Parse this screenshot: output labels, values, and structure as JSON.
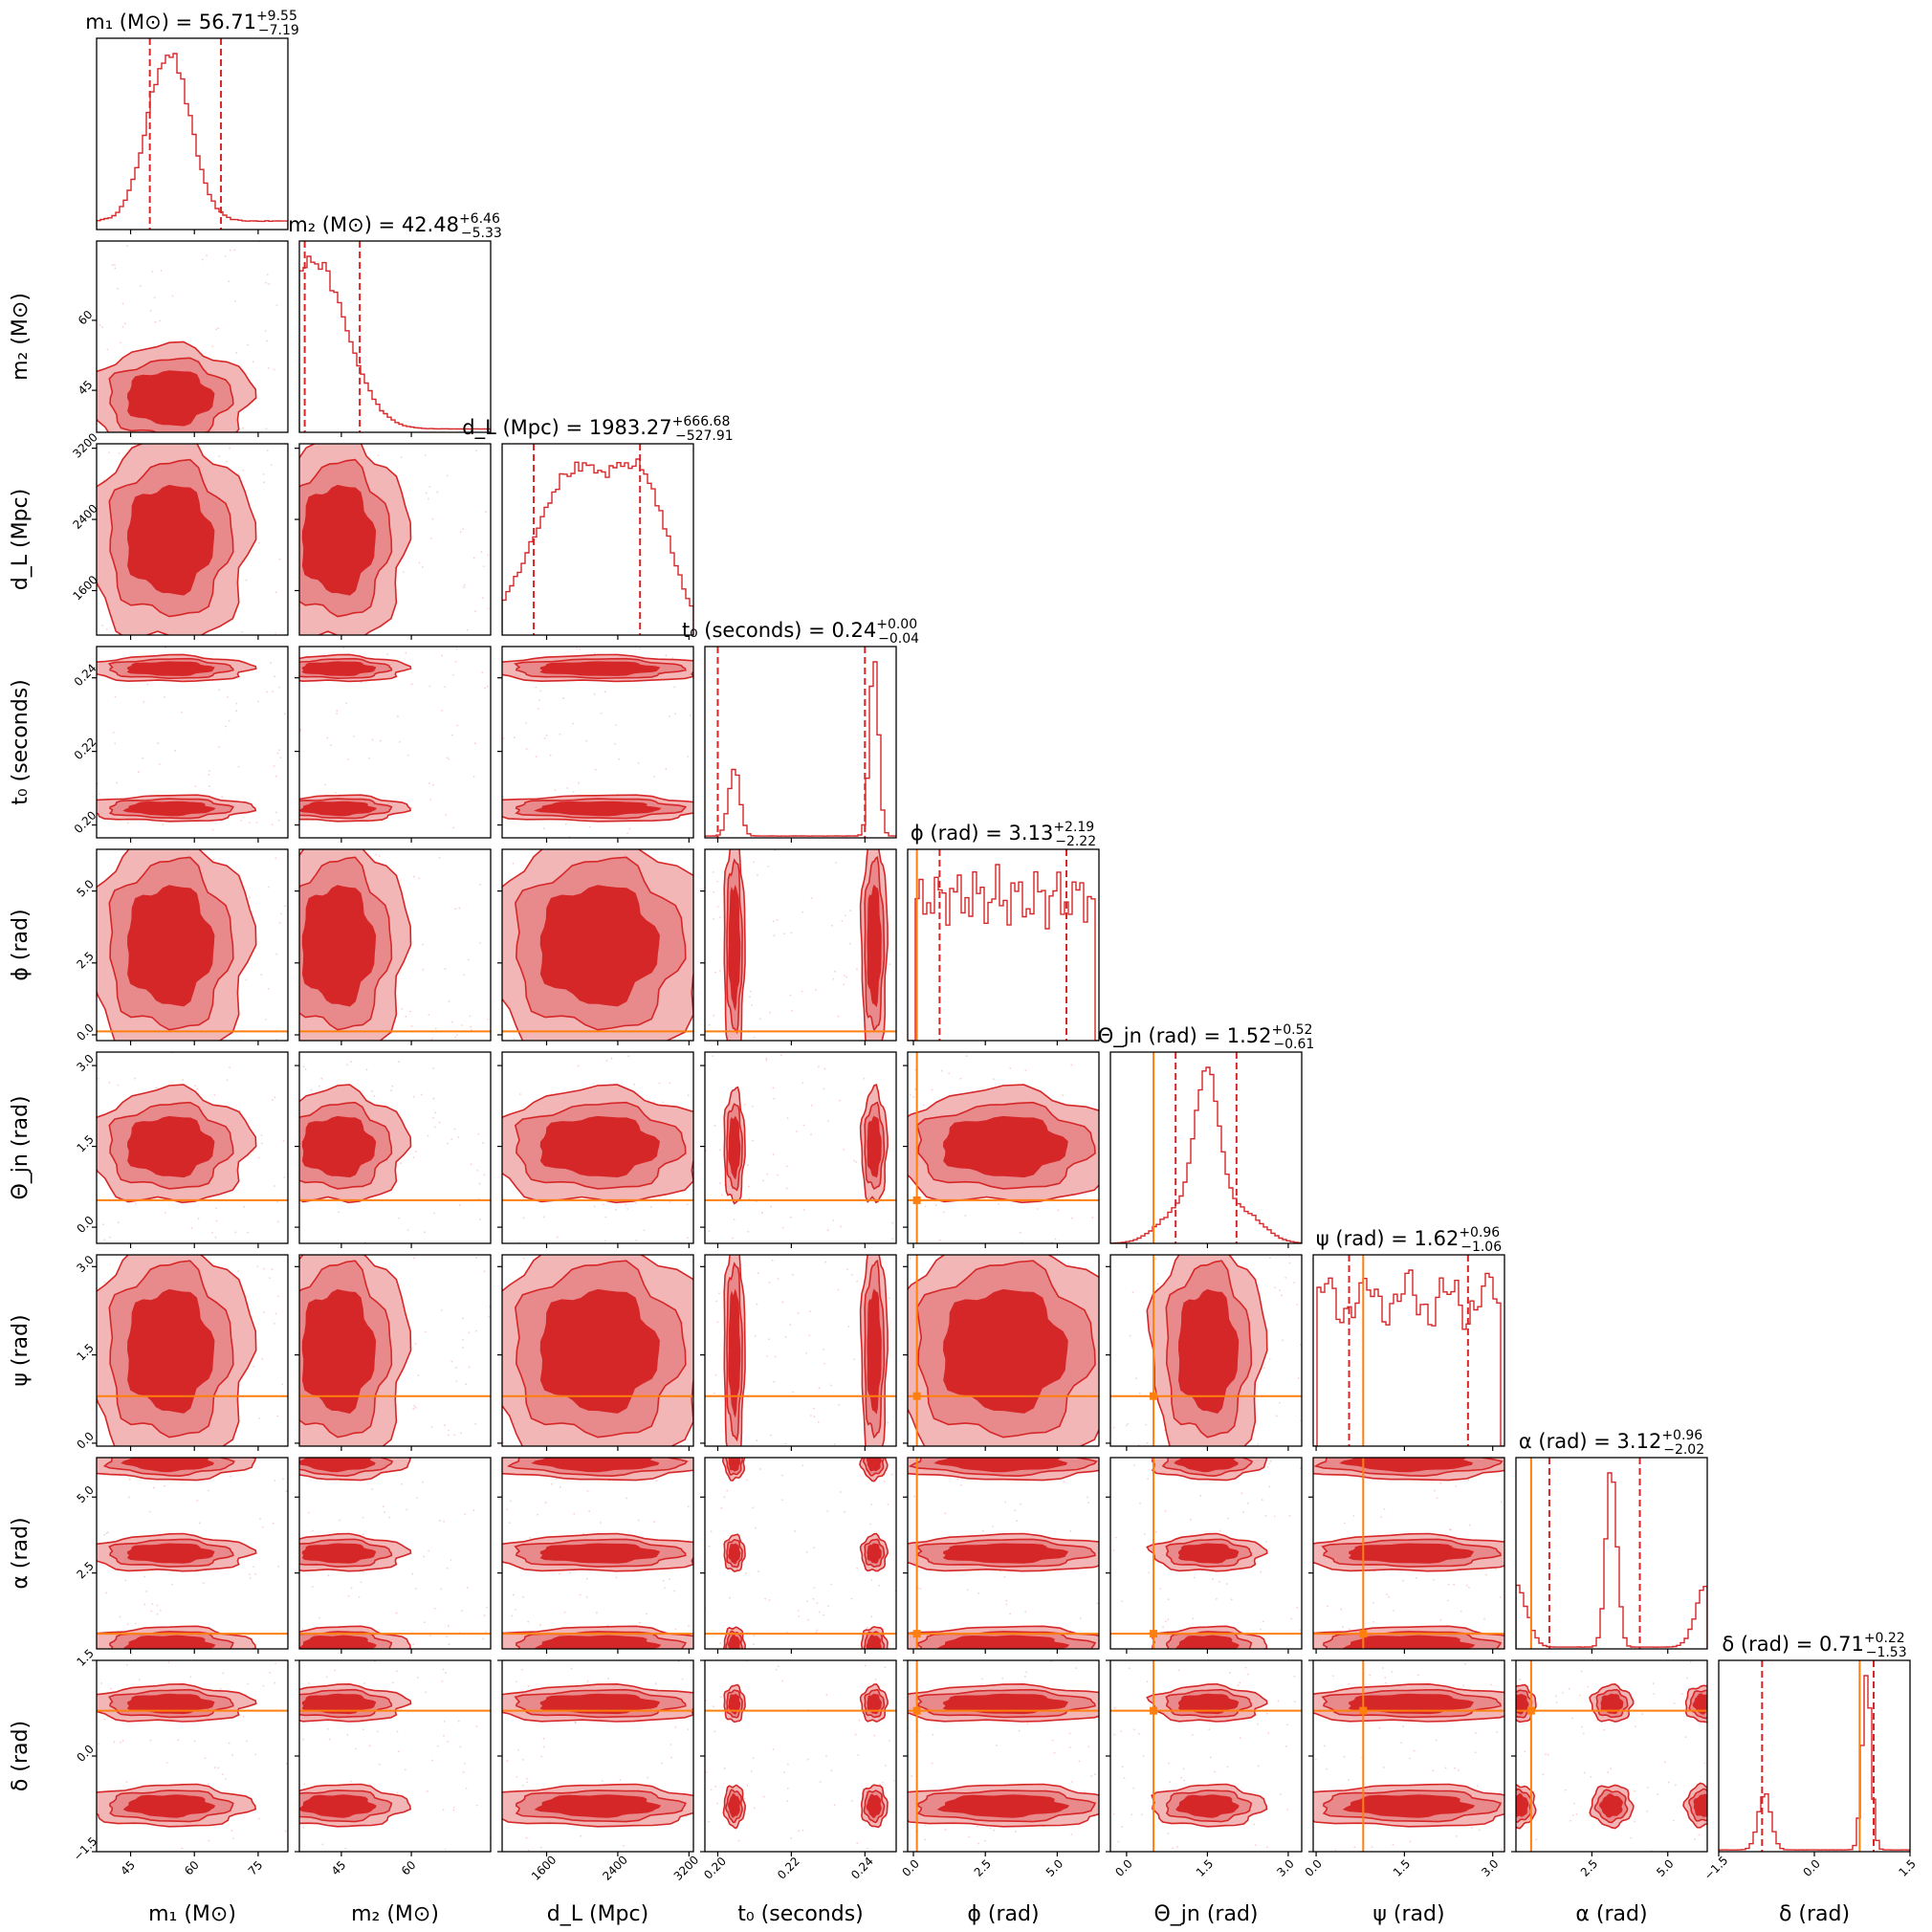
{
  "chart_data": {
    "type": "corner",
    "description": "Corner plot of posterior samples: 1D marginal histograms on the diagonal, 2D density contours below the diagonal.",
    "colors": {
      "posterior": "#d62728",
      "contour_outer": "#f3b6b6",
      "contour_mid": "#e88a8b",
      "contour_inner": "#d62728",
      "injection": "#ff7f0e"
    },
    "parameters": [
      {
        "key": "m1",
        "symbol": "m",
        "sub": "1",
        "unit": "M⊙",
        "label": "m₁ (M⊙)",
        "title_main": "m₁ (M⊙) = 56.71",
        "title_plus": "+9.55",
        "title_minus": "−7.19",
        "median": 56.71,
        "plus": 9.55,
        "minus": 7.19,
        "range": [
          37,
          82
        ],
        "ticks": [
          45,
          60,
          75
        ],
        "tick_labels": [
          "45",
          "60",
          "75"
        ],
        "hist_peaks": [
          [
            54,
            1.0,
            5
          ]
        ],
        "hist_base": 0.05
      },
      {
        "key": "m2",
        "symbol": "m",
        "sub": "2",
        "unit": "M⊙",
        "label": "m₂ (M⊙)",
        "title_main": "m₂ (M⊙) = 42.48",
        "title_plus": "+6.46",
        "title_minus": "−5.33",
        "median": 42.48,
        "plus": 6.46,
        "minus": 5.33,
        "range": [
          36,
          77
        ],
        "ticks": [
          45,
          60
        ],
        "tick_labels": [
          "45",
          "60"
        ],
        "hist_peaks": [
          [
            39,
            1.0,
            7
          ]
        ],
        "hist_base": 0.02
      },
      {
        "key": "dL",
        "symbol": "d",
        "sub": "L",
        "unit": "Mpc",
        "label": "d_L (Mpc)",
        "title_main": "d_L (Mpc) = 1983.27",
        "title_plus": "+666.68",
        "title_minus": "−527.91",
        "median": 1983.27,
        "plus": 666.68,
        "minus": 527.91,
        "range": [
          1100,
          3250
        ],
        "ticks": [
          1600,
          2400,
          3200
        ],
        "tick_labels": [
          "1600",
          "2400",
          "3200"
        ],
        "hist_peaks": [
          [
            1900,
            1.0,
            450
          ],
          [
            2700,
            0.8,
            300
          ]
        ],
        "hist_base": 0.0
      },
      {
        "key": "t0",
        "symbol": "t",
        "sub": "0",
        "unit": "seconds",
        "label": "t₀ (seconds)",
        "title_main": "t₀ (seconds) = 0.24",
        "title_plus": "+0.00",
        "title_minus": "−0.04",
        "median": 0.24,
        "plus": 0.0,
        "minus": 0.04,
        "range": [
          0.1965,
          0.2485
        ],
        "ticks": [
          0.2,
          0.22,
          0.24
        ],
        "tick_labels": [
          "0.20",
          "0.22",
          "0.24"
        ],
        "hist_peaks": [
          [
            0.2045,
            0.38,
            0.0015
          ],
          [
            0.2425,
            1.0,
            0.0012
          ]
        ],
        "hist_base": 0.01
      },
      {
        "key": "phi",
        "symbol": "ϕ",
        "sub": "",
        "unit": "rad",
        "label": "ϕ (rad)",
        "title_main": "ϕ (rad) = 3.13",
        "title_plus": "+2.19",
        "title_minus": "−2.22",
        "median": 3.13,
        "plus": 2.19,
        "minus": 2.22,
        "range": [
          -0.2,
          6.45
        ],
        "ticks": [
          0.0,
          2.5,
          5.0
        ],
        "tick_labels": [
          "0.0",
          "2.5",
          "5.0"
        ],
        "truth": 0.12,
        "hist_flat": [
          0,
          6.28,
          0.85
        ],
        "hist_base": 0.0
      },
      {
        "key": "theta",
        "symbol": "Θ",
        "sub": "jn",
        "unit": "rad",
        "label": "Θ_jn (rad)",
        "title_main": "Θ_jn (rad) = 1.52",
        "title_plus": "+0.52",
        "title_minus": "−0.61",
        "median": 1.52,
        "plus": 0.52,
        "minus": 0.61,
        "range": [
          -0.3,
          3.25
        ],
        "ticks": [
          0.0,
          1.5,
          3.0
        ],
        "tick_labels": [
          "0.0",
          "1.5",
          "3.0"
        ],
        "truth": 0.5,
        "hist_peaks": [
          [
            1.5,
            1.0,
            0.22
          ],
          [
            1.0,
            0.22,
            0.4
          ],
          [
            2.1,
            0.22,
            0.4
          ]
        ],
        "hist_base": 0.0
      },
      {
        "key": "psi",
        "symbol": "ψ",
        "sub": "",
        "unit": "rad",
        "label": "ψ (rad)",
        "title_main": "ψ (rad) = 1.62",
        "title_plus": "+0.96",
        "title_minus": "−1.06",
        "median": 1.62,
        "plus": 0.96,
        "minus": 1.06,
        "range": [
          -0.05,
          3.2
        ],
        "ticks": [
          0.0,
          1.5,
          3.0
        ],
        "tick_labels": [
          "0.0",
          "1.5",
          "3.0"
        ],
        "truth": 0.8,
        "hist_flat": [
          0,
          3.14,
          0.78
        ],
        "hist_base": 0.0
      },
      {
        "key": "alpha",
        "symbol": "α",
        "sub": "",
        "unit": "rad",
        "label": "α (rad)",
        "title_main": "α (rad) = 3.12",
        "title_plus": "+0.96",
        "title_minus": "−2.02",
        "median": 3.12,
        "plus": 0.96,
        "minus": 2.02,
        "range": [
          0,
          6.3
        ],
        "ticks": [
          2.5,
          5.0
        ],
        "tick_labels": [
          "2.5",
          "5.0"
        ],
        "truth": 0.5,
        "hist_peaks": [
          [
            3.15,
            1.0,
            0.18
          ],
          [
            0.0,
            0.35,
            0.35
          ],
          [
            6.3,
            0.35,
            0.35
          ]
        ],
        "hist_base": 0.01
      },
      {
        "key": "delta",
        "symbol": "δ",
        "sub": "",
        "unit": "rad",
        "label": "δ (rad)",
        "title_main": "δ (rad) = 0.71",
        "title_plus": "+0.22",
        "title_minus": "−1.53",
        "median": 0.71,
        "plus": 0.22,
        "minus": 1.53,
        "range": [
          -1.5,
          1.5
        ],
        "ticks": [
          -1.5,
          0.0,
          1.5
        ],
        "tick_labels": [
          "−1.5",
          "0.0",
          "1.5"
        ],
        "truth": 0.71,
        "hist_peaks": [
          [
            0.82,
            1.0,
            0.07
          ],
          [
            -0.78,
            0.32,
            0.1
          ]
        ],
        "hist_base": 0.01
      }
    ]
  }
}
